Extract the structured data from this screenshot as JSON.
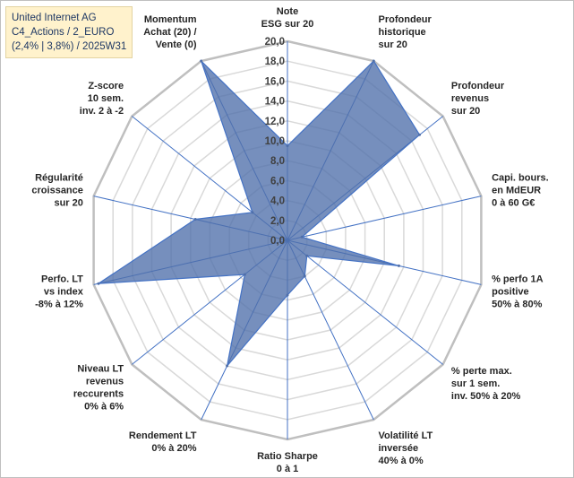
{
  "info_box": {
    "line1": "United Internet AG",
    "line2": "C4_Actions / 2_EURO",
    "line3": "(2,4% | 3,8%) / 2025W31"
  },
  "chart_data": {
    "type": "radar",
    "title": "",
    "rmin": 0,
    "rmax": 20,
    "ticks": [
      "0,0",
      "2,0",
      "4,0",
      "6,0",
      "8,0",
      "10,0",
      "12,0",
      "14,0",
      "16,0",
      "18,0",
      "20,0"
    ],
    "grid": true,
    "categories": [
      [
        "Note",
        "ESG sur 20"
      ],
      [
        "Profondeur",
        "historique",
        "sur 20"
      ],
      [
        "Profondeur",
        "revenus",
        "sur 20"
      ],
      [
        "Capi. bours.",
        "en MdEUR",
        "0 à 60 G€"
      ],
      [
        "% perfo 1A",
        "positive",
        "50% à 80%"
      ],
      [
        "% perte max.",
        "sur 1 sem.",
        "inv. 50% à 20%"
      ],
      [
        "Volatilité LT",
        "inversée",
        "40% à 0%"
      ],
      [
        "Ratio Sharpe",
        "0 à 1"
      ],
      [
        "Rendement LT",
        "0% à 20%"
      ],
      [
        "Niveau LT",
        "revenus",
        "reccurents",
        "0% à 6%"
      ],
      [
        "Perfo. LT",
        "vs index",
        "-8% à 12%"
      ],
      [
        "Régularité",
        "croissance",
        "sur 20"
      ],
      [
        "Z-score",
        "10 sem.",
        "inv. 2 à -2"
      ],
      [
        "Momentum",
        "Achat (20) /",
        "Vente (0)"
      ]
    ],
    "series": [
      {
        "values": [
          9.5,
          20,
          17,
          1.5,
          11.5,
          2.5,
          4,
          5.5,
          14,
          5.5,
          19.5,
          9.5,
          4.5,
          20
        ],
        "color": "#4f6faa"
      }
    ]
  }
}
